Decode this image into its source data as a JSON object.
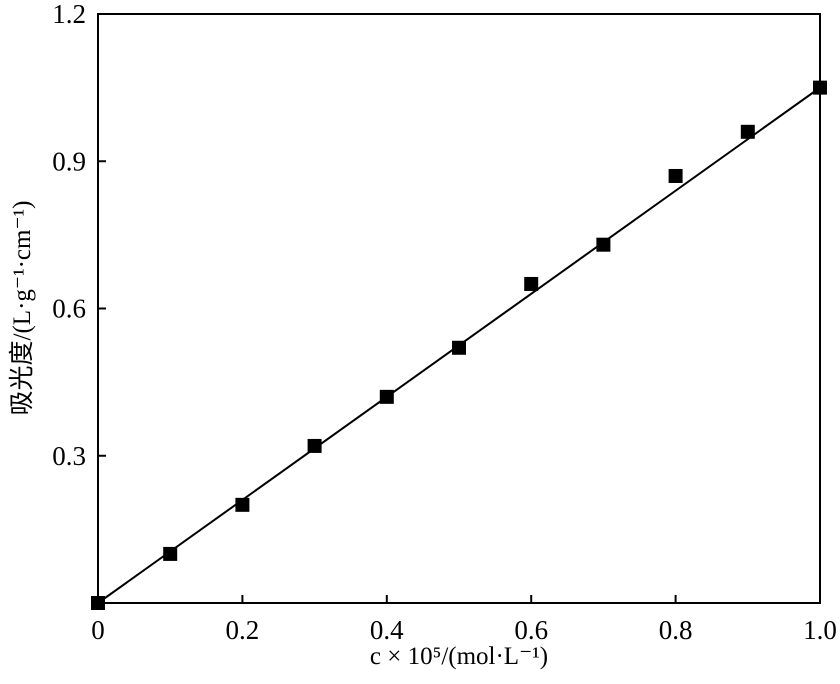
{
  "chart_data": {
    "type": "scatter",
    "xlabel": "c × 10⁵/(mol·L⁻¹)",
    "ylabel": "吸光度/(L·g⁻¹·cm⁻¹)",
    "xlim": [
      0,
      1.0
    ],
    "ylim": [
      0,
      1.2
    ],
    "x_ticks": [
      0,
      0.2,
      0.4,
      0.6,
      0.8,
      1.0
    ],
    "x_tick_labels": [
      "0",
      "0.2",
      "0.4",
      "0.6",
      "0.8",
      "1.0"
    ],
    "y_ticks": [
      0.3,
      0.6,
      0.9,
      1.2
    ],
    "y_tick_labels": [
      "0.3",
      "0.6",
      "0.9",
      "1.2"
    ],
    "grid": false,
    "series": [
      {
        "marker": "square",
        "color": "#000000",
        "x": [
          0.0,
          0.1,
          0.2,
          0.3,
          0.4,
          0.5,
          0.6,
          0.7,
          0.8,
          0.9,
          1.0
        ],
        "y": [
          0.0,
          0.1,
          0.2,
          0.32,
          0.42,
          0.52,
          0.65,
          0.73,
          0.87,
          0.96,
          1.05
        ]
      }
    ],
    "fit_line": {
      "x": [
        0.0,
        1.0
      ],
      "y": [
        0.0,
        1.05
      ],
      "color": "#000000"
    }
  }
}
